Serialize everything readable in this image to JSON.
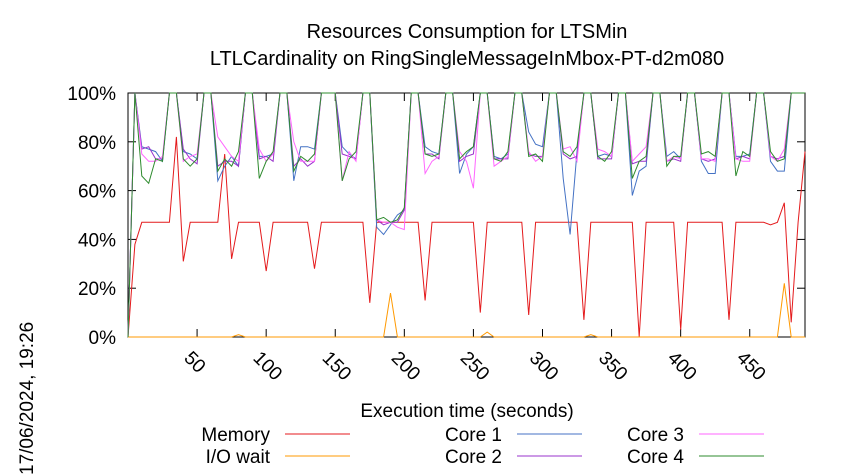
{
  "chart_data": {
    "type": "line",
    "title_line1": "Resources Consumption for LTSMin",
    "title_line2": "LTLCardinality on RingSingleMessageInMbox-PT-d2m080",
    "xlabel": "Execution time (seconds)",
    "ylabel": "",
    "timestamp": "17/06/2024, 19:26",
    "xlim": [
      0,
      490
    ],
    "ylim": [
      0,
      100
    ],
    "x_ticks": [
      50,
      100,
      150,
      200,
      250,
      300,
      350,
      400,
      450
    ],
    "x_tick_labels": [
      "50",
      "100",
      "150",
      "200",
      "250",
      "300",
      "350",
      "400",
      "450"
    ],
    "y_ticks": [
      0,
      20,
      40,
      60,
      80,
      100
    ],
    "y_tick_labels": [
      "0%",
      "20%",
      "40%",
      "60%",
      "80%",
      "100%"
    ],
    "grid": false,
    "legend_placement": "bottom",
    "x": [
      0,
      5,
      10,
      15,
      20,
      25,
      30,
      35,
      40,
      45,
      50,
      55,
      60,
      65,
      70,
      75,
      80,
      85,
      90,
      95,
      100,
      105,
      110,
      115,
      120,
      125,
      130,
      135,
      140,
      145,
      150,
      155,
      160,
      165,
      170,
      175,
      180,
      185,
      190,
      195,
      200,
      205,
      210,
      215,
      220,
      225,
      230,
      235,
      240,
      245,
      250,
      255,
      260,
      265,
      270,
      275,
      280,
      285,
      290,
      295,
      300,
      305,
      310,
      315,
      320,
      325,
      330,
      335,
      340,
      345,
      350,
      355,
      360,
      365,
      370,
      375,
      380,
      385,
      390,
      395,
      400,
      405,
      410,
      415,
      420,
      425,
      430,
      435,
      440,
      445,
      450,
      455,
      460,
      465,
      470,
      475,
      480,
      485,
      490
    ],
    "series": [
      {
        "name": "Memory",
        "color": "#e41a1c",
        "values": [
          0,
          38,
          47,
          47,
          47,
          47,
          47,
          82,
          31,
          47,
          47,
          47,
          47,
          47,
          75,
          32,
          47,
          47,
          47,
          47,
          27,
          47,
          47,
          47,
          47,
          47,
          47,
          28,
          47,
          47,
          47,
          47,
          47,
          47,
          47,
          14,
          47,
          47,
          47,
          47,
          47,
          47,
          47,
          15,
          47,
          47,
          47,
          47,
          47,
          47,
          47,
          10,
          47,
          47,
          47,
          47,
          47,
          47,
          9,
          47,
          47,
          47,
          47,
          47,
          47,
          47,
          7,
          47,
          47,
          47,
          47,
          47,
          47,
          47,
          0,
          47,
          47,
          47,
          47,
          47,
          3,
          47,
          47,
          47,
          47,
          47,
          47,
          7,
          47,
          47,
          47,
          47,
          47,
          46,
          47,
          55,
          6,
          47,
          76
        ]
      },
      {
        "name": "I/O wait",
        "color": "#ff9900",
        "values": [
          0,
          0,
          0,
          0,
          0,
          0,
          0,
          0,
          0,
          0,
          0,
          0,
          0,
          0,
          0,
          0,
          1,
          0,
          0,
          0,
          0,
          0,
          0,
          0,
          0,
          0,
          0,
          0,
          0,
          0,
          0,
          0,
          0,
          0,
          0,
          0,
          0,
          0,
          18,
          0,
          0,
          0,
          0,
          0,
          0,
          0,
          0,
          0,
          0,
          0,
          0,
          0,
          2,
          0,
          0,
          0,
          0,
          0,
          0,
          0,
          0,
          0,
          0,
          0,
          0,
          0,
          0,
          1,
          0,
          0,
          0,
          0,
          0,
          0,
          0,
          0,
          0,
          0,
          0,
          0,
          0,
          0,
          0,
          0,
          0,
          0,
          0,
          0,
          0,
          0,
          0,
          0,
          0,
          0,
          0,
          22,
          0,
          0,
          0
        ]
      },
      {
        "name": "Core 1",
        "color": "#4472c4",
        "values": [
          0,
          100,
          78,
          77,
          76,
          72,
          100,
          100,
          76,
          75,
          73,
          100,
          100,
          64,
          70,
          74,
          70,
          100,
          100,
          74,
          74,
          75,
          100,
          100,
          64,
          78,
          78,
          77,
          100,
          100,
          100,
          78,
          75,
          73,
          100,
          100,
          45,
          42,
          46,
          50,
          52,
          100,
          100,
          78,
          76,
          75,
          100,
          100,
          67,
          75,
          78,
          100,
          100,
          74,
          73,
          75,
          100,
          100,
          84,
          79,
          78,
          100,
          100,
          65,
          42,
          76,
          100,
          100,
          74,
          75,
          74,
          100,
          100,
          58,
          68,
          70,
          100,
          100,
          74,
          76,
          73,
          100,
          100,
          72,
          67,
          67,
          100,
          100,
          74,
          74,
          75,
          100,
          100,
          72,
          68,
          68,
          100,
          100,
          100
        ]
      },
      {
        "name": "Core 2",
        "color": "#9933cc",
        "values": [
          0,
          100,
          77,
          78,
          73,
          73,
          100,
          100,
          77,
          73,
          71,
          100,
          100,
          70,
          72,
          72,
          70,
          100,
          100,
          73,
          74,
          72,
          100,
          100,
          70,
          73,
          70,
          72,
          100,
          100,
          100,
          75,
          74,
          73,
          100,
          100,
          48,
          46,
          47,
          47,
          52,
          100,
          100,
          75,
          75,
          73,
          100,
          100,
          72,
          74,
          75,
          100,
          100,
          73,
          73,
          73,
          100,
          100,
          75,
          74,
          74,
          100,
          100,
          75,
          73,
          74,
          100,
          100,
          73,
          73,
          73,
          100,
          100,
          71,
          72,
          72,
          100,
          100,
          72,
          73,
          72,
          100,
          100,
          73,
          72,
          73,
          100,
          100,
          73,
          74,
          73,
          100,
          100,
          74,
          73,
          74,
          100,
          100,
          100
        ]
      },
      {
        "name": "Core 3",
        "color": "#ff66ff",
        "values": [
          0,
          100,
          75,
          72,
          72,
          74,
          100,
          100,
          72,
          74,
          75,
          100,
          100,
          82,
          78,
          74,
          72,
          100,
          100,
          77,
          72,
          75,
          100,
          100,
          80,
          72,
          72,
          72,
          100,
          100,
          100,
          64,
          76,
          72,
          100,
          100,
          48,
          47,
          47,
          45,
          44,
          100,
          100,
          67,
          72,
          74,
          100,
          100,
          76,
          72,
          61,
          100,
          100,
          70,
          72,
          74,
          100,
          100,
          76,
          72,
          74,
          100,
          100,
          77,
          78,
          72,
          100,
          100,
          77,
          76,
          74,
          100,
          100,
          72,
          75,
          78,
          100,
          100,
          72,
          74,
          73,
          100,
          100,
          73,
          73,
          72,
          100,
          100,
          73,
          72,
          72,
          100,
          100,
          74,
          72,
          77,
          100,
          100,
          100
        ]
      },
      {
        "name": "Core 4",
        "color": "#2e8b2e",
        "values": [
          0,
          100,
          66,
          63,
          73,
          72,
          100,
          100,
          73,
          70,
          73,
          100,
          100,
          68,
          73,
          70,
          76,
          100,
          100,
          65,
          72,
          76,
          100,
          100,
          68,
          74,
          72,
          75,
          100,
          100,
          100,
          64,
          73,
          76,
          100,
          100,
          48,
          49,
          47,
          48,
          53,
          100,
          100,
          75,
          74,
          75,
          100,
          100,
          73,
          76,
          78,
          100,
          100,
          73,
          72,
          76,
          100,
          100,
          74,
          75,
          72,
          100,
          100,
          76,
          74,
          78,
          100,
          100,
          74,
          72,
          76,
          100,
          100,
          65,
          72,
          74,
          100,
          100,
          70,
          74,
          74,
          100,
          100,
          75,
          76,
          74,
          100,
          100,
          66,
          76,
          74,
          100,
          100,
          76,
          72,
          73,
          100,
          100,
          100
        ]
      }
    ]
  }
}
